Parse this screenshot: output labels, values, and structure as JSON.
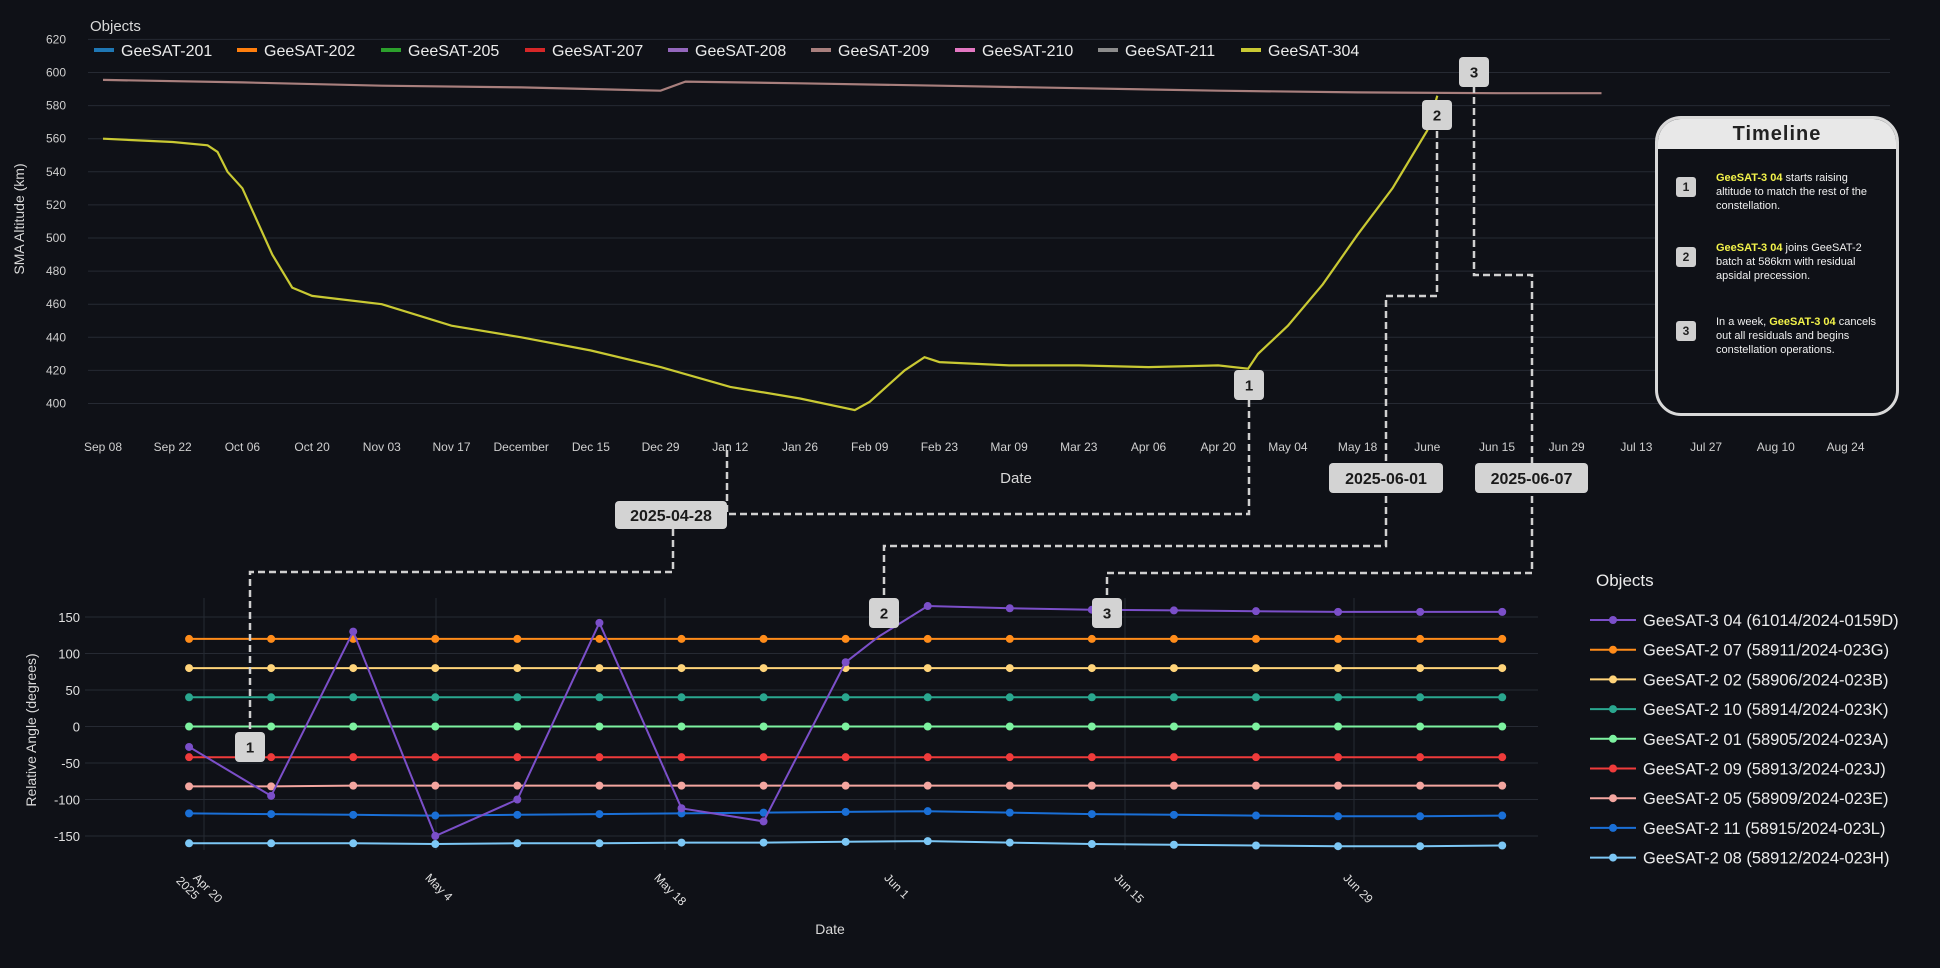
{
  "colors": {
    "bg": "#0f1117",
    "grid": "#2a2d36",
    "text": "#e6e6e6",
    "callout": "#d0d0d0"
  },
  "top_chart": {
    "legend_title": "Objects",
    "xlabel": "Date",
    "ylabel": "SMA Altitude (km)"
  },
  "bottom_chart": {
    "legend_title": "Objects",
    "xlabel": "Date",
    "ylabel": "Relative Angle (degrees)"
  },
  "timeline": {
    "title": "Timeline",
    "items": [
      {
        "num": "1",
        "highlight": "GeeSAT-3 04",
        "pre": "",
        "post": " starts raising altitude to match the rest of the constellation."
      },
      {
        "num": "2",
        "highlight": "GeeSAT-3 04",
        "pre": "",
        "post": " joins GeeSAT-2 batch at 586km with residual apsidal precession."
      },
      {
        "num": "3",
        "highlight": "GeeSAT-3 04",
        "pre": "In a week, ",
        "post": " cancels out all residuals and begins constellation operations."
      }
    ]
  },
  "callouts": {
    "date_labels": [
      "2025-04-28",
      "2025-06-01",
      "2025-06-07"
    ],
    "numbers": [
      "1",
      "2",
      "3"
    ]
  },
  "chart_data": [
    {
      "type": "line",
      "title": "",
      "xlabel": "Date",
      "ylabel": "SMA Altitude (km)",
      "ylim": [
        390,
        620
      ],
      "yticks": [
        400,
        420,
        440,
        460,
        480,
        500,
        520,
        540,
        560,
        580,
        600,
        620
      ],
      "xticks": [
        "Sep 08",
        "Sep 22",
        "Oct 06",
        "Oct 20",
        "Nov 03",
        "Nov 17",
        "December",
        "Dec 15",
        "Dec 29",
        "Jan 12",
        "Jan 26",
        "Feb 09",
        "Feb 23",
        "Mar 09",
        "Mar 23",
        "Apr 06",
        "Apr 20",
        "May 04",
        "May 18",
        "June",
        "Jun 15",
        "Jun 29",
        "Jul 13",
        "Jul 27",
        "Aug 10",
        "Aug 24"
      ],
      "x_start": "2024-09-08",
      "legend_placement": "top-left",
      "grid": true,
      "series": [
        {
          "name": "GeeSAT-201",
          "color": "#1f77b4",
          "points": []
        },
        {
          "name": "GeeSAT-202",
          "color": "#ff7f0e",
          "points": []
        },
        {
          "name": "GeeSAT-205",
          "color": "#2ca02c",
          "points": []
        },
        {
          "name": "GeeSAT-207",
          "color": "#d62728",
          "points": []
        },
        {
          "name": "GeeSAT-208",
          "color": "#9467bd",
          "points": []
        },
        {
          "name": "GeeSAT-209",
          "color": "#a87f7d",
          "points": [
            [
              "2024-09-08",
              595.5
            ],
            [
              "2024-10-06",
              594
            ],
            [
              "2024-11-03",
              592
            ],
            [
              "2024-12-01",
              591
            ],
            [
              "2024-12-29",
              589
            ],
            [
              "2025-01-03",
              594.5
            ],
            [
              "2025-01-26",
              593.5
            ],
            [
              "2025-02-23",
              592
            ],
            [
              "2025-03-23",
              590.5
            ],
            [
              "2025-04-20",
              589
            ],
            [
              "2025-05-18",
              588
            ],
            [
              "2025-06-15",
              587.5
            ],
            [
              "2025-07-06",
              587.5
            ]
          ]
        },
        {
          "name": "GeeSAT-210",
          "color": "#e377c2",
          "points": []
        },
        {
          "name": "GeeSAT-211",
          "color": "#8c8c8c",
          "points": []
        },
        {
          "name": "GeeSAT-304",
          "color": "#c9c933",
          "points": [
            [
              "2024-09-08",
              560
            ],
            [
              "2024-09-22",
              558
            ],
            [
              "2024-09-29",
              556
            ],
            [
              "2024-10-01",
              552
            ],
            [
              "2024-10-03",
              540
            ],
            [
              "2024-10-06",
              530
            ],
            [
              "2024-10-12",
              490
            ],
            [
              "2024-10-16",
              470
            ],
            [
              "2024-10-20",
              465
            ],
            [
              "2024-11-03",
              460
            ],
            [
              "2024-11-17",
              447
            ],
            [
              "2024-12-01",
              440
            ],
            [
              "2024-12-15",
              432
            ],
            [
              "2024-12-29",
              422
            ],
            [
              "2025-01-12",
              410
            ],
            [
              "2025-01-26",
              403
            ],
            [
              "2025-02-06",
              396
            ],
            [
              "2025-02-09",
              401
            ],
            [
              "2025-02-16",
              420
            ],
            [
              "2025-02-20",
              428
            ],
            [
              "2025-02-23",
              425
            ],
            [
              "2025-03-09",
              423
            ],
            [
              "2025-03-23",
              423
            ],
            [
              "2025-04-06",
              422
            ],
            [
              "2025-04-20",
              423
            ],
            [
              "2025-04-26",
              421
            ],
            [
              "2025-04-28",
              430
            ],
            [
              "2025-05-04",
              447
            ],
            [
              "2025-05-11",
              472
            ],
            [
              "2025-05-18",
              502
            ],
            [
              "2025-05-25",
              530
            ],
            [
              "2025-06-01",
              565
            ],
            [
              "2025-06-03",
              586
            ]
          ]
        }
      ]
    },
    {
      "type": "line",
      "title": "",
      "xlabel": "Date",
      "ylabel": "Relative Angle (degrees)",
      "ylim": [
        -175,
        175
      ],
      "yticks": [
        -150,
        -100,
        -50,
        0,
        50,
        100,
        150
      ],
      "xticks": [
        "Apr 20 2025",
        "May 4",
        "May 18",
        "Jun 1",
        "Jun 15",
        "Jun 29"
      ],
      "x_start": "2025-04-15",
      "legend_placement": "right",
      "grid": true,
      "dates": [
        "2025-04-20",
        "2025-04-25",
        "2025-04-30",
        "2025-05-05",
        "2025-05-10",
        "2025-05-15",
        "2025-05-20",
        "2025-05-25",
        "2025-05-30",
        "2025-06-04",
        "2025-06-09",
        "2025-06-14",
        "2025-06-19",
        "2025-06-24",
        "2025-06-29",
        "2025-07-04",
        "2025-07-09"
      ],
      "series": [
        {
          "name": "GeeSAT-3 04 (61014/2024-0159D)",
          "color": "#7b4fc9",
          "points": [
            [
              "2025-04-20",
              -28
            ],
            [
              "2025-04-25",
              -95
            ],
            [
              "2025-04-30",
              130
            ],
            [
              "2025-05-05",
              -150
            ],
            [
              "2025-05-10",
              -100
            ],
            [
              "2025-05-15",
              142
            ],
            [
              "2025-05-20",
              -112
            ],
            [
              "2025-05-25",
              -130
            ],
            [
              "2025-05-30",
              88
            ],
            [
              "2025-06-01",
              123
            ],
            [
              "2025-06-04",
              165
            ],
            [
              "2025-06-09",
              162
            ],
            [
              "2025-06-14",
              160
            ],
            [
              "2025-06-19",
              159
            ],
            [
              "2025-06-24",
              158
            ],
            [
              "2025-06-29",
              157
            ],
            [
              "2025-07-04",
              157
            ],
            [
              "2025-07-09",
              157
            ]
          ]
        },
        {
          "name": "GeeSAT-2 07 (58911/2024-023G)",
          "color": "#ff8c1a",
          "flat": [
            120,
            120,
            120,
            120,
            120,
            120,
            120,
            120,
            120,
            120,
            120,
            120,
            120,
            120,
            120,
            120,
            120
          ]
        },
        {
          "name": "GeeSAT-2 02 (58906/2024-023B)",
          "color": "#ffd47a",
          "flat": [
            80,
            80,
            80,
            80,
            80,
            80,
            80,
            80,
            80,
            80,
            80,
            80,
            80,
            80,
            80,
            80,
            80
          ]
        },
        {
          "name": "GeeSAT-2 10 (58914/2024-023K)",
          "color": "#2aa78f",
          "flat": [
            40,
            40,
            40,
            40,
            40,
            40,
            40,
            40,
            40,
            40,
            40,
            40,
            40,
            40,
            40,
            40,
            40
          ]
        },
        {
          "name": "GeeSAT-2 01 (58905/2024-023A)",
          "color": "#7df2a0",
          "flat": [
            0,
            0,
            0,
            0,
            0,
            0,
            0,
            0,
            0,
            0,
            0,
            0,
            0,
            0,
            0,
            0,
            0
          ]
        },
        {
          "name": "GeeSAT-2 09 (58913/2024-023J)",
          "color": "#ef3b3b",
          "flat": [
            -42,
            -42,
            -42,
            -42,
            -42,
            -42,
            -42,
            -42,
            -42,
            -42,
            -42,
            -42,
            -42,
            -42,
            -42,
            -42,
            -42
          ]
        },
        {
          "name": "GeeSAT-2 05 (58909/2024-023E)",
          "color": "#f4a6a0",
          "flat": [
            -82,
            -82,
            -81,
            -81,
            -81,
            -81,
            -81,
            -81,
            -81,
            -81,
            -81,
            -81,
            -81,
            -81,
            -81,
            -81,
            -81
          ]
        },
        {
          "name": "GeeSAT-2 11 (58915/2024-023L)",
          "color": "#1a6fd6",
          "flat": [
            -119,
            -120,
            -121,
            -122,
            -121,
            -120,
            -119,
            -118,
            -117,
            -116,
            -118,
            -120,
            -121,
            -122,
            -123,
            -123,
            -122
          ]
        },
        {
          "name": "GeeSAT-2 08 (58912/2024-023H)",
          "color": "#7cc7f5",
          "flat": [
            -160,
            -160,
            -160,
            -161,
            -160,
            -160,
            -159,
            -159,
            -158,
            -157,
            -159,
            -161,
            -162,
            -163,
            -164,
            -164,
            -163
          ]
        }
      ]
    }
  ]
}
